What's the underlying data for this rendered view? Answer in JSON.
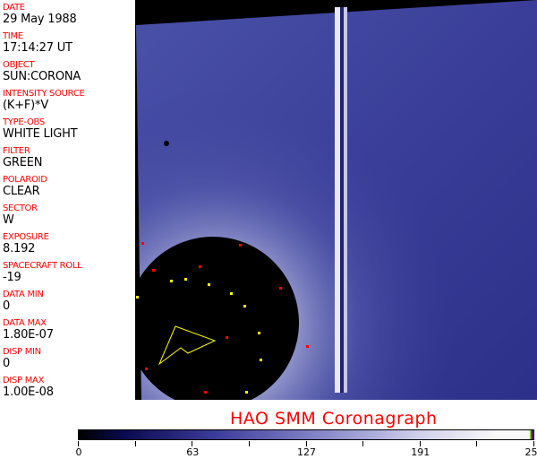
{
  "fields": [
    {
      "label": "DATE",
      "value": "29 May 1988"
    },
    {
      "label": "TIME",
      "value": "17:14:27 UT"
    },
    {
      "label": "OBJECT",
      "value": "SUN:CORONA"
    },
    {
      "label": "INTENSITY SOURCE",
      "value": "(K+F)*V"
    },
    {
      "label": "TYPE-OBS",
      "value": "WHITE LIGHT"
    },
    {
      "label": "FILTER",
      "value": "GREEN"
    },
    {
      "label": "POLAROID",
      "value": "CLEAR"
    },
    {
      "label": "SECTOR",
      "value": "W"
    },
    {
      "label": "EXPOSURE",
      "value": "8.192"
    },
    {
      "label": "SPACECRAFT ROLL",
      "value": "-19"
    },
    {
      "label": "DATA MIN",
      "value": "0"
    },
    {
      "label": "DATA MAX",
      "value": "1.80E-07"
    },
    {
      "label": "DISP MIN",
      "value": "0"
    },
    {
      "label": "DISP MAX",
      "value": "1.00E-08"
    }
  ],
  "title": "HAO  SMM Coronagraph",
  "colorbar": {
    "ticks": [
      "0",
      "63",
      "127",
      "191",
      "255"
    ],
    "colors": {
      "low": "#000000",
      "mid": "#3c3c9c",
      "high": "#f8f8f8"
    }
  }
}
